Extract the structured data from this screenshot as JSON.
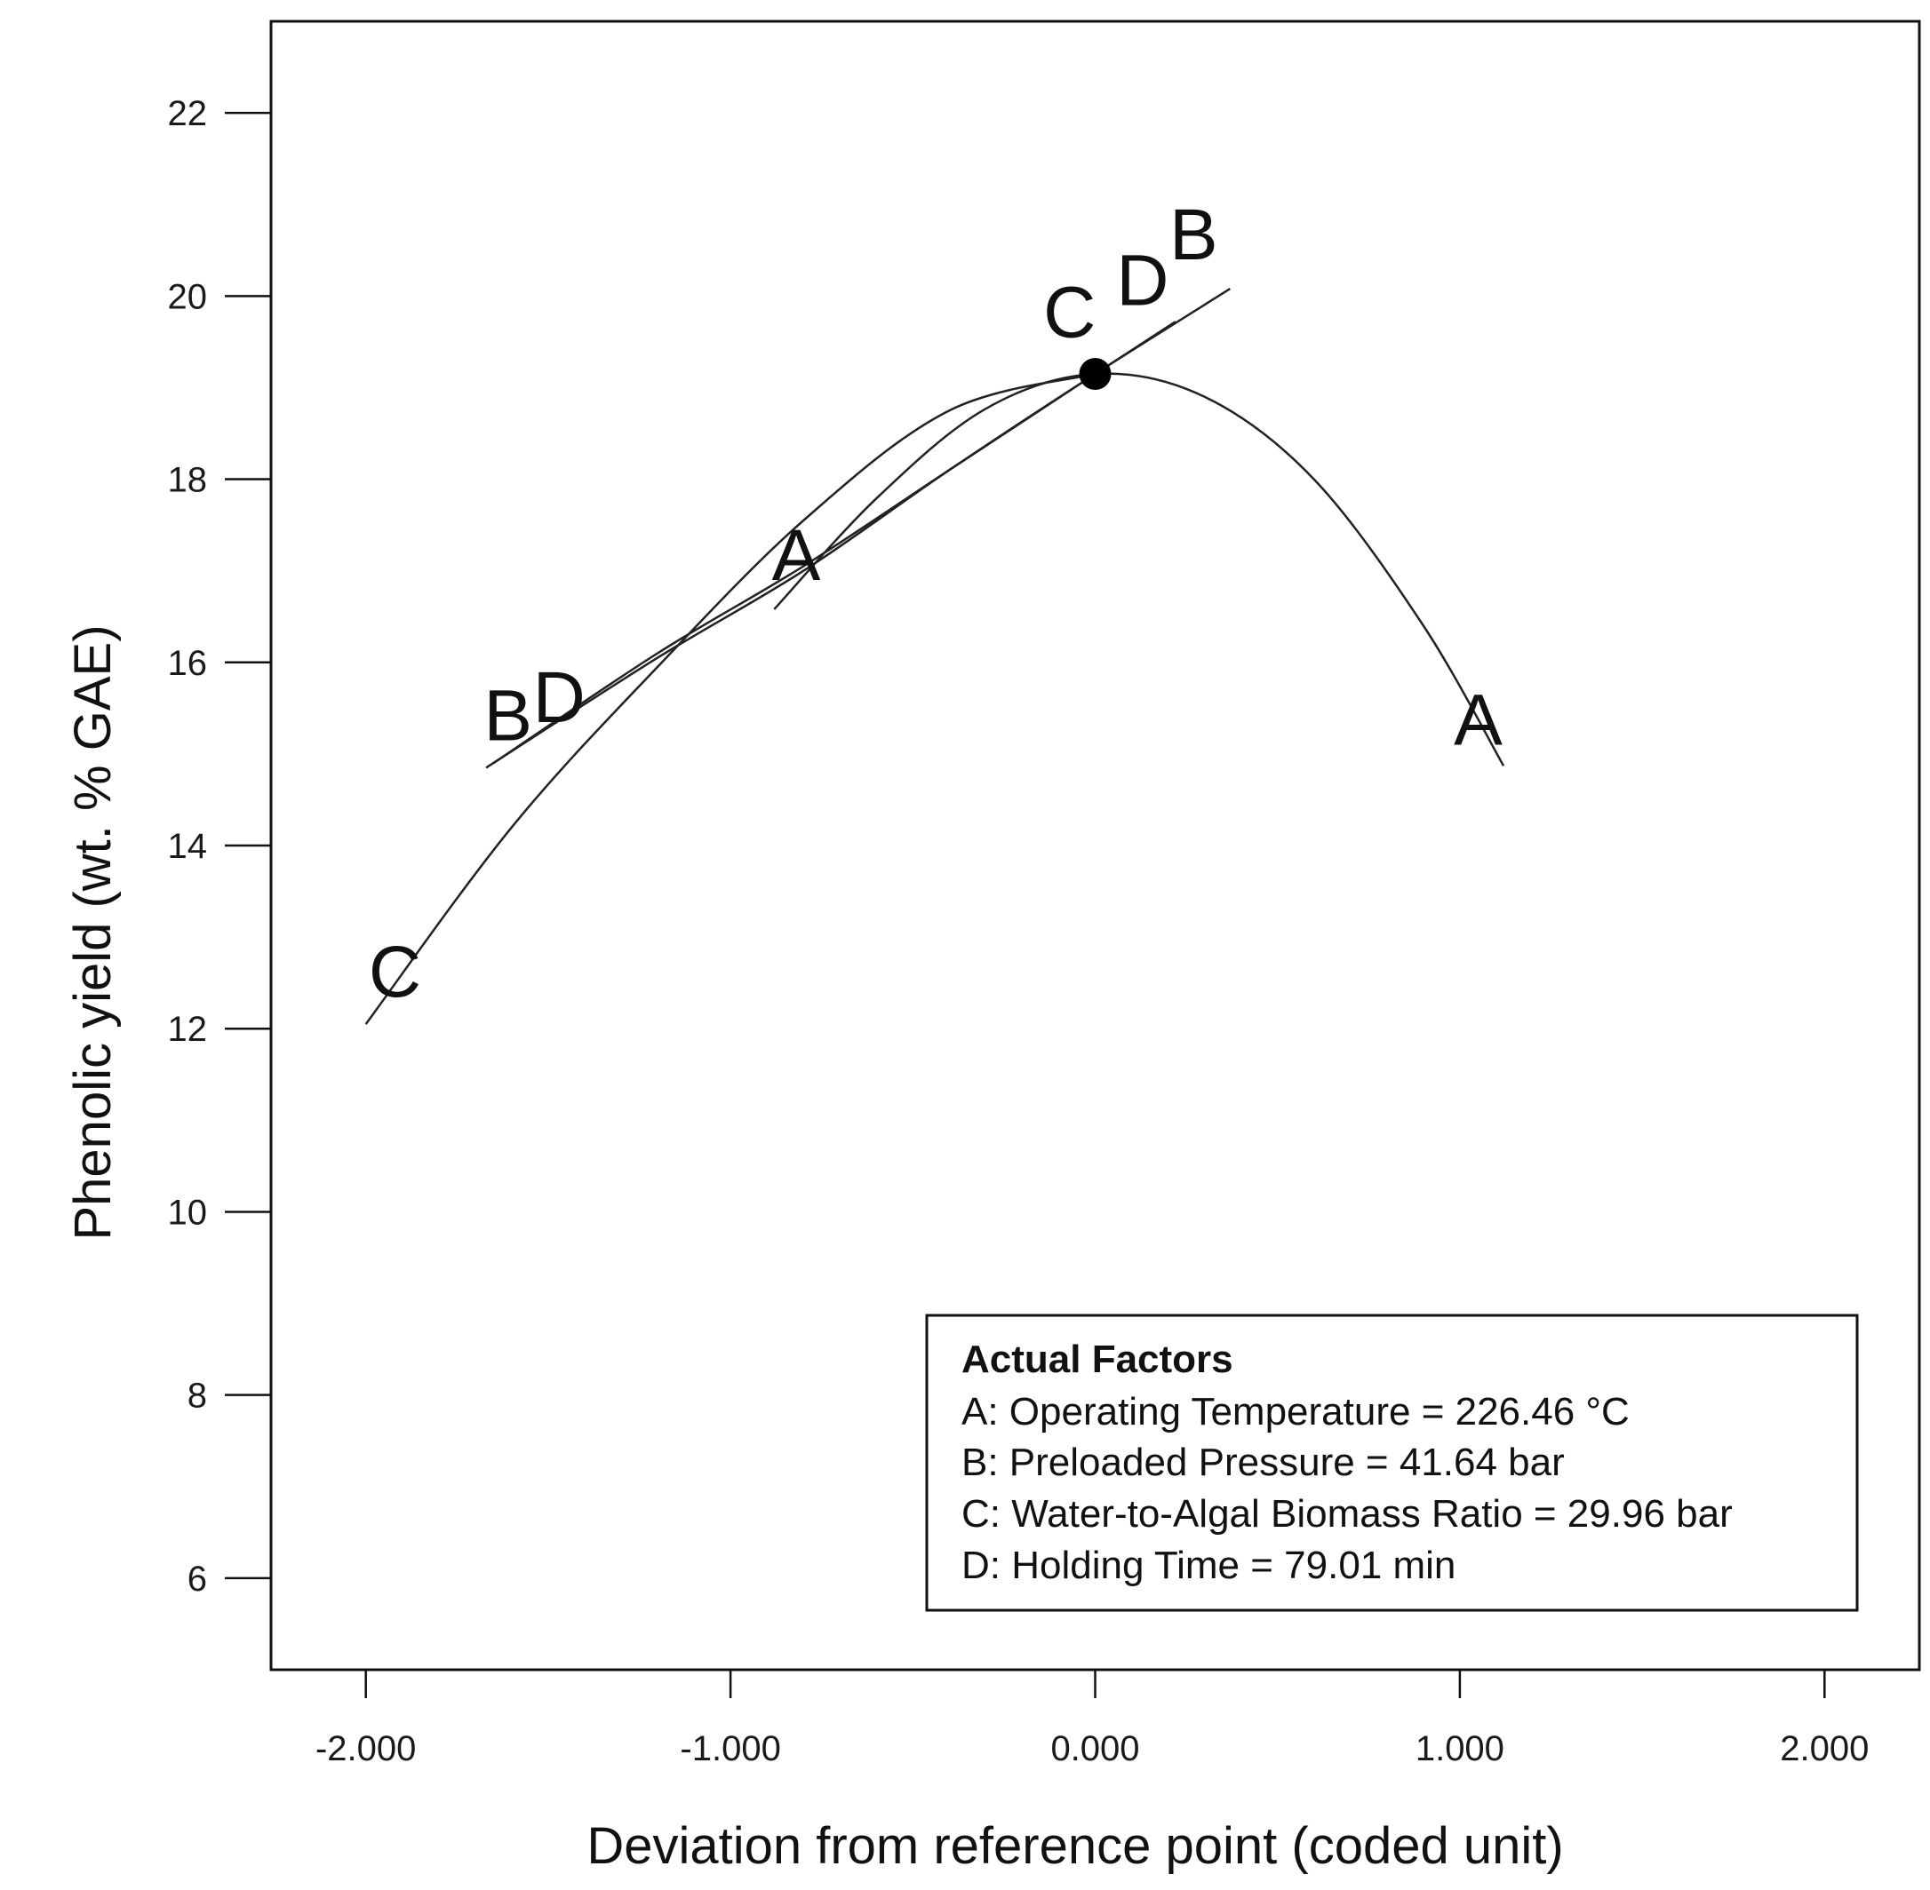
{
  "chart_data": {
    "type": "line",
    "xlabel": "Deviation from reference point (coded unit)",
    "ylabel": "Phenolic yield (wt. % GAE)",
    "xlim": [
      -2.26,
      2.26
    ],
    "ylim": [
      5,
      23
    ],
    "x_ticks": [
      -2,
      -1,
      0,
      1,
      2
    ],
    "x_tick_labels": [
      "-2.000",
      "-1.000",
      "0.000",
      "1.000",
      "2.000"
    ],
    "y_ticks": [
      6,
      8,
      10,
      12,
      14,
      16,
      18,
      20,
      22
    ],
    "y_tick_labels": [
      "6",
      "8",
      "10",
      "12",
      "14",
      "16",
      "18",
      "20",
      "22"
    ],
    "grid": false,
    "reference_point": {
      "x": 0,
      "y": 19.15
    },
    "series": [
      {
        "name": "A",
        "x": [
          -0.88,
          -0.6,
          -0.3,
          0,
          0.3,
          0.6,
          0.9,
          1.12
        ],
        "y": [
          16.58,
          17.79,
          18.77,
          19.15,
          18.9,
          18.0,
          16.4,
          14.87
        ]
      },
      {
        "name": "B",
        "x": [
          -1.67,
          -1.2,
          -0.8,
          -0.4,
          0,
          0.37
        ],
        "y": [
          14.85,
          16.05,
          17.0,
          18.1,
          19.15,
          20.08
        ]
      },
      {
        "name": "C",
        "x": [
          -2.0,
          -1.6,
          -1.2,
          -0.8,
          -0.4,
          0
        ],
        "y": [
          12.05,
          14.2,
          15.95,
          17.55,
          18.75,
          19.15
        ]
      },
      {
        "name": "D",
        "x": [
          -1.65,
          -1.2,
          -0.8,
          -0.4,
          0,
          0.22
        ],
        "y": [
          14.9,
          16.1,
          17.05,
          18.1,
          19.15,
          19.72
        ]
      }
    ],
    "curve_labels": [
      {
        "text": "A",
        "x": -0.82,
        "y": 16.9
      },
      {
        "text": "A",
        "x": 1.05,
        "y": 15.1
      },
      {
        "text": "B",
        "x": -1.61,
        "y": 15.15
      },
      {
        "text": "B",
        "x": 0.27,
        "y": 20.4
      },
      {
        "text": "C",
        "x": -1.92,
        "y": 12.35
      },
      {
        "text": "C",
        "x": -0.07,
        "y": 19.55
      },
      {
        "text": "D",
        "x": -1.47,
        "y": 15.35
      },
      {
        "text": "D",
        "x": 0.13,
        "y": 19.9
      }
    ],
    "legend": {
      "placement": "bottom-right",
      "title": "Actual Factors",
      "entries": [
        "A: Operating Temperature = 226.46 °C",
        "B: Preloaded Pressure = 41.64 bar",
        "C: Water-to-Algal Biomass Ratio = 29.96 bar",
        "D: Holding Time = 79.01 min"
      ]
    },
    "colors": {
      "line": "#222222",
      "frame": "#111111",
      "marker": "#000000"
    }
  }
}
